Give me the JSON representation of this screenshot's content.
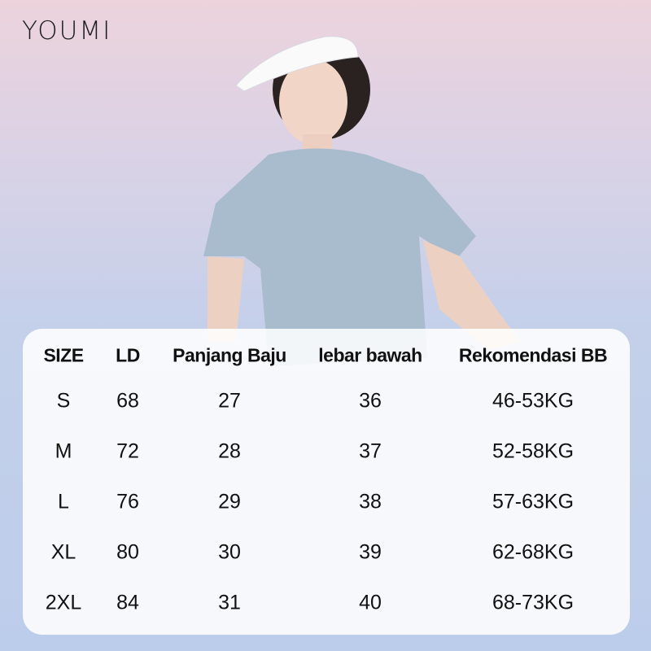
{
  "brand": "YOUMI",
  "table": {
    "headers": [
      "SIZE",
      "LD",
      "Panjang Baju",
      "lebar bawah",
      "Rekomendasi BB"
    ],
    "rows": [
      [
        "S",
        "68",
        "27",
        "36",
        "46-53KG"
      ],
      [
        "M",
        "72",
        "28",
        "37",
        "52-58KG"
      ],
      [
        "L",
        "76",
        "29",
        "38",
        "57-63KG"
      ],
      [
        "XL",
        "80",
        "30",
        "39",
        "62-68KG"
      ],
      [
        "2XL",
        "84",
        "31",
        "40",
        "68-73KG"
      ]
    ]
  },
  "colors": {
    "background_top": "#ecd3dc",
    "background_bottom": "#bccdeb",
    "shirt": "#a9bccd",
    "visor": "#ffffff"
  }
}
